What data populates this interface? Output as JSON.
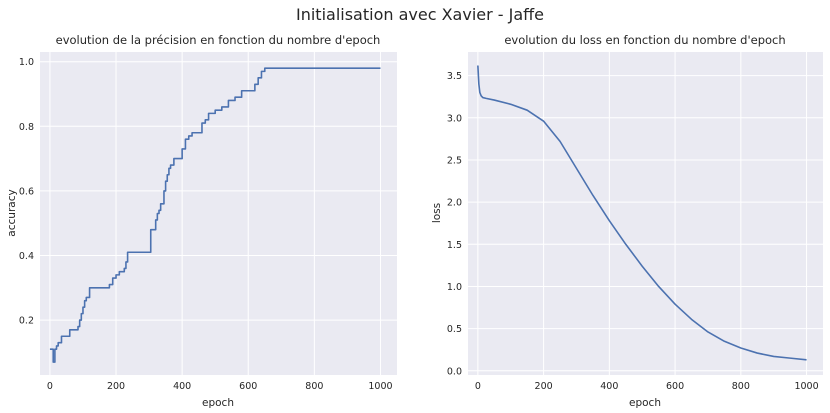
{
  "figure_title": "Initialisation avec Xavier - Jaffe",
  "colors": {
    "series": "#4c72b0",
    "plot_background": "#eaeaf2",
    "grid": "#ffffff"
  },
  "chart_data": [
    {
      "type": "line",
      "title": "evolution de la précision en fonction du nombre d'epoch",
      "xlabel": "epoch",
      "ylabel": "accuracy",
      "xlim": [
        -30,
        1050
      ],
      "ylim": [
        0.03,
        1.03
      ],
      "xticks": [
        0,
        200,
        400,
        600,
        800,
        1000
      ],
      "xtick_labels": [
        "0",
        "200",
        "400",
        "600",
        "800",
        "1000"
      ],
      "yticks": [
        0.2,
        0.4,
        0.6,
        0.8,
        1.0
      ],
      "ytick_labels": [
        "0.2",
        "0.4",
        "0.6",
        "0.8",
        "1.0"
      ],
      "grid": true,
      "step": true,
      "series": [
        {
          "x": [
            0,
            5,
            10,
            15,
            20,
            25,
            30,
            35,
            40,
            50,
            60,
            70,
            80,
            85,
            90,
            95,
            100,
            105,
            110,
            120,
            130,
            140,
            150,
            160,
            170,
            180,
            190,
            200,
            210,
            220,
            225,
            230,
            235,
            240,
            250,
            260,
            270,
            280,
            290,
            300,
            305,
            310,
            315,
            320,
            325,
            330,
            335,
            340,
            345,
            350,
            355,
            360,
            365,
            370,
            375,
            380,
            390,
            400,
            410,
            420,
            430,
            440,
            450,
            460,
            470,
            480,
            500,
            520,
            540,
            560,
            580,
            600,
            620,
            630,
            640,
            650,
            700,
            800,
            900,
            1000
          ],
          "values": [
            0.11,
            0.11,
            0.07,
            0.11,
            0.12,
            0.13,
            0.13,
            0.15,
            0.15,
            0.15,
            0.17,
            0.17,
            0.17,
            0.18,
            0.2,
            0.22,
            0.24,
            0.26,
            0.27,
            0.3,
            0.3,
            0.3,
            0.3,
            0.3,
            0.3,
            0.31,
            0.33,
            0.34,
            0.35,
            0.35,
            0.36,
            0.38,
            0.41,
            0.41,
            0.41,
            0.41,
            0.41,
            0.41,
            0.41,
            0.41,
            0.48,
            0.48,
            0.48,
            0.51,
            0.53,
            0.54,
            0.56,
            0.56,
            0.6,
            0.63,
            0.65,
            0.67,
            0.68,
            0.68,
            0.7,
            0.7,
            0.7,
            0.73,
            0.76,
            0.77,
            0.78,
            0.78,
            0.78,
            0.81,
            0.82,
            0.84,
            0.85,
            0.86,
            0.88,
            0.89,
            0.91,
            0.91,
            0.93,
            0.95,
            0.97,
            0.98,
            0.98,
            0.98,
            0.98,
            0.98
          ]
        }
      ]
    },
    {
      "type": "line",
      "title": "evolution du loss en fonction du nombre d'epoch",
      "xlabel": "epoch",
      "ylabel": "loss",
      "xlim": [
        -30,
        1050
      ],
      "ylim": [
        -0.05,
        3.78
      ],
      "xticks": [
        0,
        200,
        400,
        600,
        800,
        1000
      ],
      "xtick_labels": [
        "0",
        "200",
        "400",
        "600",
        "800",
        "1000"
      ],
      "yticks": [
        0.0,
        0.5,
        1.0,
        1.5,
        2.0,
        2.5,
        3.0,
        3.5
      ],
      "ytick_labels": [
        "0.0",
        "0.5",
        "1.0",
        "1.5",
        "2.0",
        "2.5",
        "3.0",
        "3.5"
      ],
      "grid": true,
      "step": false,
      "series": [
        {
          "x": [
            0,
            3,
            6,
            10,
            15,
            25,
            50,
            100,
            150,
            200,
            250,
            300,
            350,
            400,
            450,
            500,
            550,
            600,
            650,
            700,
            750,
            800,
            850,
            900,
            950,
            1000
          ],
          "values": [
            3.62,
            3.4,
            3.3,
            3.26,
            3.24,
            3.23,
            3.21,
            3.16,
            3.09,
            2.96,
            2.72,
            2.4,
            2.08,
            1.78,
            1.5,
            1.24,
            1.0,
            0.79,
            0.61,
            0.46,
            0.35,
            0.27,
            0.21,
            0.17,
            0.15,
            0.13
          ]
        }
      ]
    }
  ]
}
